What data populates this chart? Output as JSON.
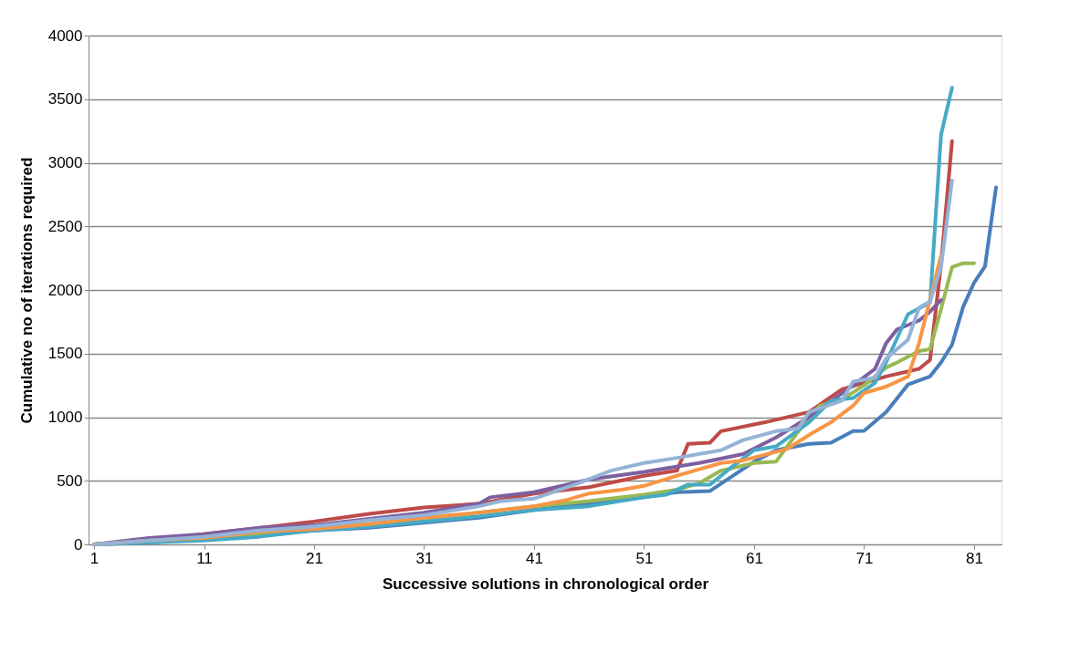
{
  "chart_data": {
    "type": "line",
    "xlabel": "Successive solutions in chronological order",
    "ylabel": "Cumulative no of iterations required",
    "xlim": [
      0.5,
      83.5
    ],
    "xticks": [
      1,
      11,
      21,
      31,
      41,
      51,
      61,
      71,
      81
    ],
    "ylim": [
      0,
      4000
    ],
    "yticks": [
      0,
      500,
      1000,
      1500,
      2000,
      2500,
      3000,
      3500,
      4000
    ],
    "grid": "y",
    "legend": false,
    "marker": "none",
    "line_style": "solid",
    "series": [
      {
        "color": "#4a7ebb",
        "x": [
          1,
          6,
          11,
          16,
          21,
          26,
          31,
          36,
          41,
          46,
          51,
          54,
          57,
          59,
          61,
          63,
          66,
          68,
          70,
          71,
          73,
          75,
          77,
          78,
          79,
          80,
          81,
          82,
          83
        ],
        "values": [
          0,
          15,
          45,
          80,
          110,
          130,
          170,
          210,
          270,
          320,
          370,
          410,
          420,
          535,
          650,
          740,
          790,
          800,
          890,
          893,
          1040,
          1257,
          1320,
          1430,
          1570,
          1865,
          2057,
          2186,
          2807
        ]
      },
      {
        "color": "#be4b48",
        "x": [
          1,
          6,
          11,
          16,
          21,
          26,
          31,
          36,
          41,
          46,
          51,
          54,
          55,
          57,
          58,
          62,
          66,
          69,
          73,
          76,
          77,
          78,
          79
        ],
        "values": [
          0,
          30,
          80,
          130,
          180,
          240,
          290,
          320,
          400,
          450,
          540,
          580,
          790,
          800,
          890,
          960,
          1040,
          1220,
          1320,
          1380,
          1450,
          2200,
          3170
        ]
      },
      {
        "color": "#98b954",
        "x": [
          1,
          11,
          21,
          31,
          41,
          46,
          51,
          54,
          56,
          58,
          61,
          63,
          64,
          66,
          67,
          69,
          71,
          73,
          74,
          76,
          77,
          78,
          79,
          80,
          81
        ],
        "values": [
          0,
          40,
          120,
          200,
          300,
          340,
          390,
          430,
          480,
          580,
          640,
          650,
          770,
          1000,
          1090,
          1140,
          1250,
          1390,
          1430,
          1520,
          1535,
          1850,
          2180,
          2210,
          2210
        ]
      },
      {
        "color": "#7d60a0",
        "x": [
          1,
          6,
          11,
          16,
          21,
          26,
          31,
          36,
          37,
          41,
          46,
          51,
          56,
          60,
          63,
          66,
          70,
          72,
          73,
          74,
          76,
          77,
          78
        ],
        "values": [
          0,
          50,
          80,
          130,
          150,
          200,
          250,
          320,
          370,
          410,
          510,
          570,
          640,
          710,
          840,
          1000,
          1250,
          1380,
          1580,
          1690,
          1760,
          1830,
          1920
        ]
      },
      {
        "color": "#46aac5",
        "x": [
          1,
          11,
          16,
          21,
          26,
          31,
          36,
          41,
          46,
          51,
          53,
          55,
          57,
          59,
          61,
          63,
          66,
          68,
          70,
          72,
          73,
          75,
          77,
          78,
          79
        ],
        "values": [
          0,
          30,
          60,
          110,
          140,
          180,
          220,
          270,
          300,
          370,
          390,
          470,
          470,
          610,
          740,
          770,
          960,
          1130,
          1150,
          1270,
          1430,
          1810,
          1900,
          3220,
          3590
        ]
      },
      {
        "color": "#f79646",
        "x": [
          1,
          6,
          11,
          16,
          21,
          26,
          31,
          36,
          41,
          44,
          46,
          49,
          51,
          54,
          58,
          60,
          64,
          66,
          68,
          70,
          71,
          73,
          75,
          76,
          78
        ],
        "values": [
          0,
          30,
          50,
          100,
          120,
          160,
          210,
          250,
          300,
          350,
          400,
          430,
          460,
          540,
          640,
          660,
          750,
          860,
          960,
          1090,
          1190,
          1240,
          1320,
          1580,
          2270
        ]
      },
      {
        "color": "#95b3d7",
        "x": [
          1,
          6,
          11,
          16,
          21,
          26,
          31,
          36,
          38,
          41,
          45,
          48,
          51,
          54,
          58,
          60,
          63,
          65,
          66,
          69,
          70,
          72,
          73,
          75,
          76,
          77,
          78,
          79
        ],
        "values": [
          0,
          30,
          60,
          110,
          140,
          190,
          230,
          300,
          340,
          360,
          480,
          580,
          640,
          680,
          740,
          820,
          890,
          910,
          1040,
          1130,
          1280,
          1310,
          1460,
          1610,
          1860,
          1910,
          2180,
          2860
        ]
      }
    ]
  }
}
